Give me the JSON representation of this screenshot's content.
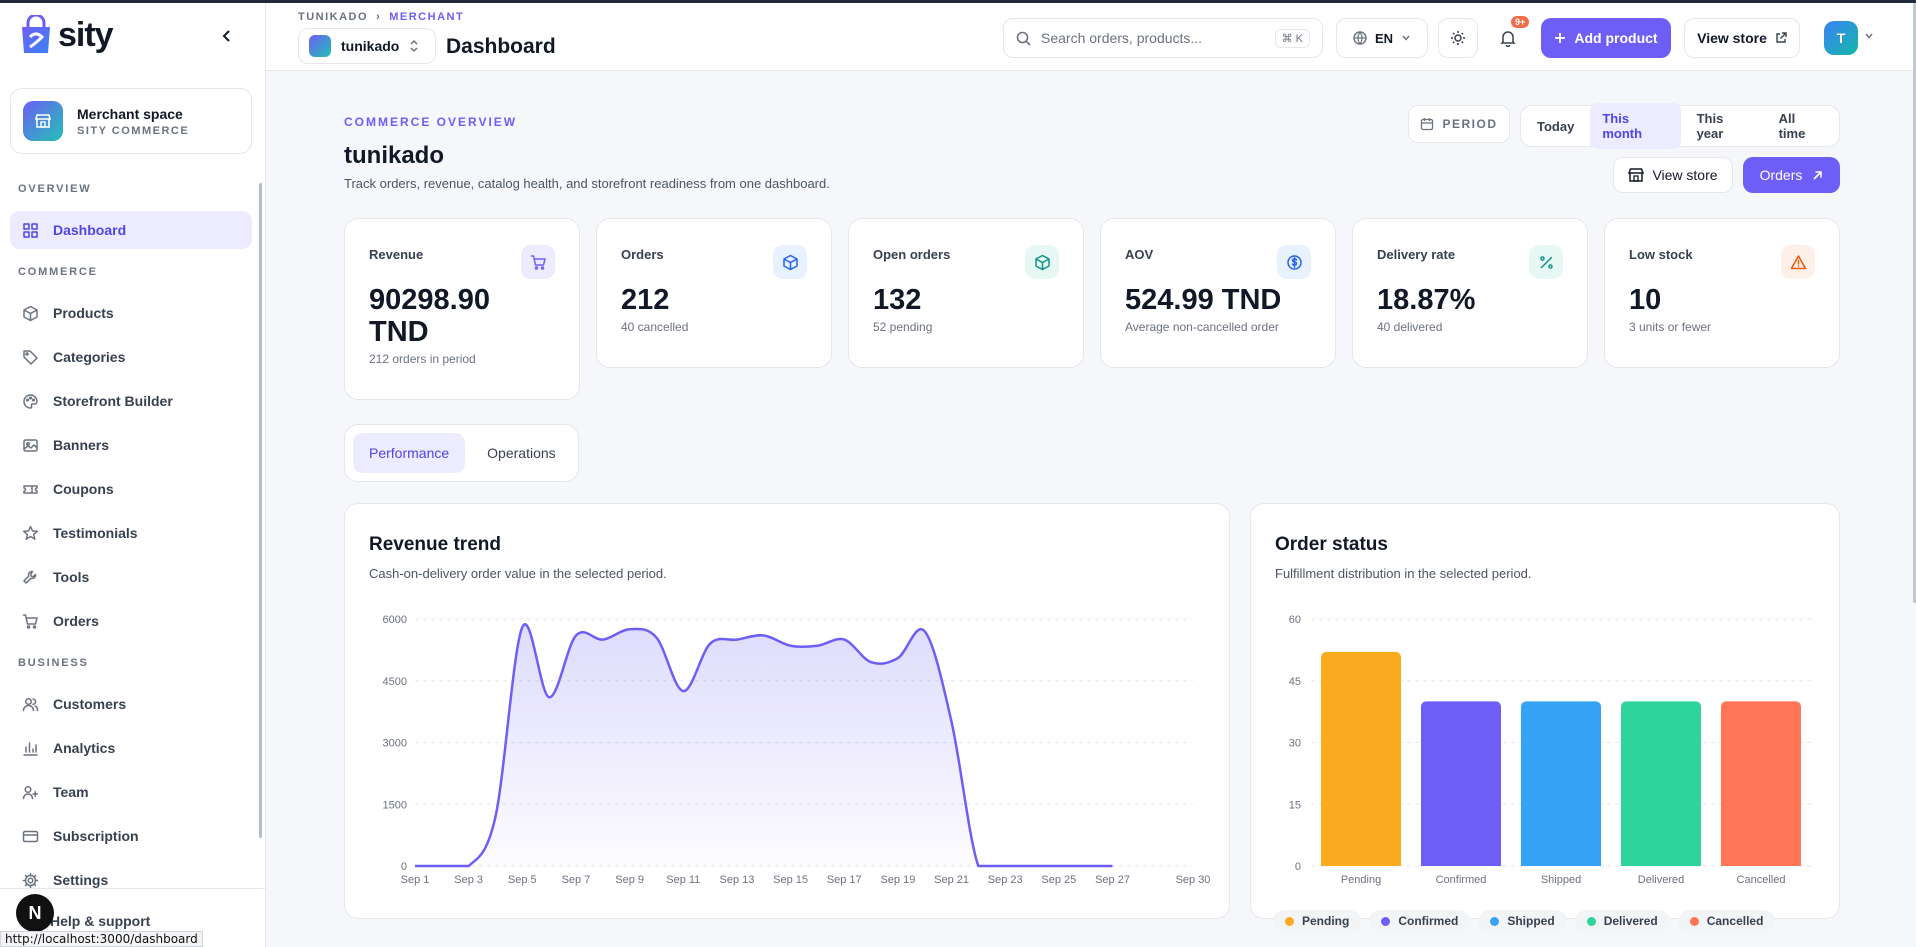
{
  "app": {
    "name": "sity"
  },
  "sidebar": {
    "merchant": {
      "name": "Merchant space",
      "subtitle": "SITY COMMERCE"
    },
    "sections": {
      "overview": "OVERVIEW",
      "commerce": "COMMERCE",
      "business": "BUSINESS"
    },
    "items": [
      {
        "label": "Dashboard",
        "icon": "grid-icon",
        "active": true
      },
      {
        "label": "Products",
        "icon": "box-icon"
      },
      {
        "label": "Categories",
        "icon": "tag-icon"
      },
      {
        "label": "Storefront Builder",
        "icon": "palette-icon"
      },
      {
        "label": "Banners",
        "icon": "image-icon"
      },
      {
        "label": "Coupons",
        "icon": "ticket-icon"
      },
      {
        "label": "Testimonials",
        "icon": "star-icon"
      },
      {
        "label": "Tools",
        "icon": "wrench-icon"
      },
      {
        "label": "Orders",
        "icon": "cart-icon"
      },
      {
        "label": "Customers",
        "icon": "users-icon"
      },
      {
        "label": "Analytics",
        "icon": "bar-chart-icon"
      },
      {
        "label": "Team",
        "icon": "team-icon"
      },
      {
        "label": "Subscription",
        "icon": "card-icon"
      },
      {
        "label": "Settings",
        "icon": "gear-icon"
      }
    ],
    "help": "Help & support",
    "next_badge": "N"
  },
  "status_url": "http://localhost:3000/dashboard",
  "header": {
    "breadcrumb": [
      "TUNIKADO",
      "MERCHANT"
    ],
    "store": "tunikado",
    "page_title": "Dashboard",
    "search_placeholder": "Search orders, products...",
    "search_shortcut": "⌘ K",
    "language": "EN",
    "notification_count": "9+",
    "add_product": "Add product",
    "view_store": "View store",
    "user_initial": "T"
  },
  "overview": {
    "eyebrow": "COMMERCE OVERVIEW",
    "title": "tunikado",
    "subtitle": "Track orders, revenue, catalog health, and storefront readiness from one dashboard.",
    "period_label": "PERIOD",
    "periods": [
      {
        "label": "Today"
      },
      {
        "label": "This month",
        "active": true
      },
      {
        "label": "This year"
      },
      {
        "label": "All time"
      }
    ],
    "view_store": "View store",
    "orders": "Orders"
  },
  "kpis": [
    {
      "label": "Revenue",
      "value": "90298.90 TND",
      "sub": "212 orders in period",
      "icon": "cart-icon",
      "color": "#6d5ef5",
      "bg": "#ecebff"
    },
    {
      "label": "Orders",
      "value": "212",
      "sub": "40 cancelled",
      "icon": "package-icon",
      "color": "#2563eb",
      "bg": "#e8f1fe"
    },
    {
      "label": "Open orders",
      "value": "132",
      "sub": "52 pending",
      "icon": "package-icon",
      "color": "#0d9488",
      "bg": "#e6f7f4"
    },
    {
      "label": "AOV",
      "value": "524.99 TND",
      "sub": "Average non-cancelled order",
      "icon": "dollar-icon",
      "color": "#2563eb",
      "bg": "#e8f1fe"
    },
    {
      "label": "Delivery rate",
      "value": "18.87%",
      "sub": "40 delivered",
      "icon": "percent-icon",
      "color": "#0d9488",
      "bg": "#e6f7f4"
    },
    {
      "label": "Low stock",
      "value": "10",
      "sub": "3 units or fewer",
      "icon": "warning-icon",
      "color": "#ea580c",
      "bg": "#fdf0e8"
    }
  ],
  "tabs": [
    {
      "label": "Performance",
      "active": true
    },
    {
      "label": "Operations"
    }
  ],
  "revenue_card": {
    "title": "Revenue trend",
    "subtitle": "Cash-on-delivery order value in the selected period."
  },
  "status_card": {
    "title": "Order status",
    "subtitle": "Fulfillment distribution in the selected period."
  },
  "chart_data": [
    {
      "type": "area",
      "title": "Revenue trend",
      "x": [
        "Sep 1",
        "Sep 2",
        "Sep 3",
        "Sep 4",
        "Sep 5",
        "Sep 6",
        "Sep 7",
        "Sep 8",
        "Sep 9",
        "Sep 10",
        "Sep 11",
        "Sep 12",
        "Sep 13",
        "Sep 14",
        "Sep 15",
        "Sep 16",
        "Sep 17",
        "Sep 18",
        "Sep 19",
        "Sep 20",
        "Sep 21",
        "Sep 22",
        "Sep 23",
        "Sep 24",
        "Sep 25",
        "Sep 26",
        "Sep 27"
      ],
      "values": [
        0,
        0,
        0,
        1200,
        5800,
        4100,
        5600,
        5500,
        5750,
        5550,
        4250,
        5400,
        5500,
        5600,
        5350,
        5350,
        5500,
        4950,
        5050,
        5700,
        3500,
        0,
        0,
        0,
        0,
        0,
        0
      ],
      "x_ticks": [
        "Sep 1",
        "Sep 3",
        "Sep 5",
        "Sep 7",
        "Sep 9",
        "Sep 11",
        "Sep 13",
        "Sep 15",
        "Sep 17",
        "Sep 19",
        "Sep 21",
        "Sep 23",
        "Sep 25",
        "Sep 27",
        "Sep 30"
      ],
      "y_ticks": [
        0,
        1500,
        3000,
        4500,
        6000
      ],
      "ylim": [
        0,
        6000
      ],
      "color": "#6d5ef5",
      "grid": true
    },
    {
      "type": "bar",
      "title": "Order status",
      "categories": [
        "Pending",
        "Confirmed",
        "Shipped",
        "Delivered",
        "Cancelled"
      ],
      "values": [
        52,
        40,
        40,
        40,
        40
      ],
      "colors": [
        "#fbab1f",
        "#6d5ef5",
        "#36a3f7",
        "#2fd39c",
        "#ff7556"
      ],
      "y_ticks": [
        0,
        15,
        30,
        45,
        60
      ],
      "ylim": [
        0,
        60
      ],
      "legend": "bottom",
      "grid": true
    }
  ]
}
